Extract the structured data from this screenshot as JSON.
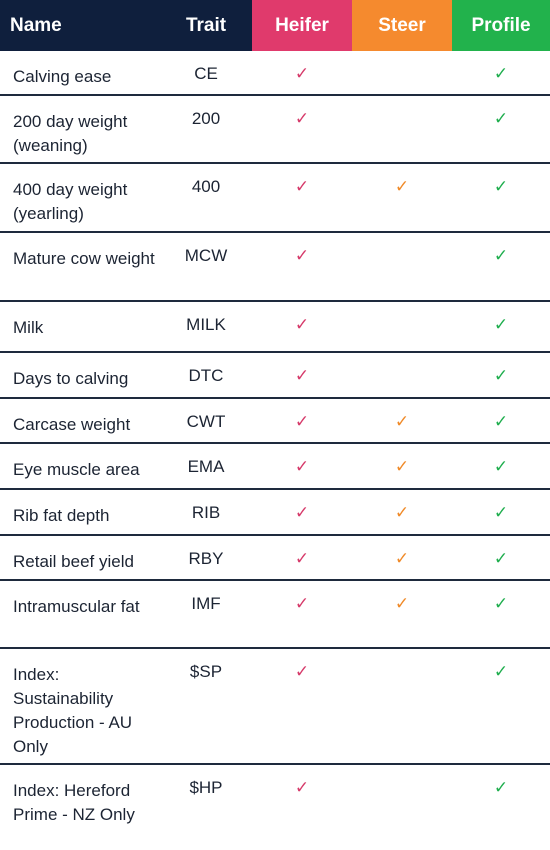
{
  "colors": {
    "header_bg": "#0f1f3d",
    "heifer": "#e03a6c",
    "steer": "#f58a2e",
    "profile": "#22b24c",
    "check_mark": "✓"
  },
  "headers": {
    "name": "Name",
    "trait": "Trait",
    "heifer": "Heifer",
    "steer": "Steer",
    "profile": "Profile"
  },
  "rows": [
    {
      "name": "Calving ease",
      "trait": "CE",
      "heifer": true,
      "steer": false,
      "profile": true
    },
    {
      "name": "200 day weight (weaning)",
      "trait": "200",
      "heifer": true,
      "steer": false,
      "profile": true
    },
    {
      "name": "400 day weight (yearling)",
      "trait": "400",
      "heifer": true,
      "steer": true,
      "profile": true
    },
    {
      "name": "Mature cow weight",
      "trait": "MCW",
      "heifer": true,
      "steer": false,
      "profile": true
    },
    {
      "name": "Milk",
      "trait": "MILK",
      "heifer": true,
      "steer": false,
      "profile": true
    },
    {
      "name": "Days to calving",
      "trait": "DTC",
      "heifer": true,
      "steer": false,
      "profile": true
    },
    {
      "name": "Carcase weight",
      "trait": "CWT",
      "heifer": true,
      "steer": true,
      "profile": true
    },
    {
      "name": "Eye muscle area",
      "trait": "EMA",
      "heifer": true,
      "steer": true,
      "profile": true
    },
    {
      "name": "Rib fat depth",
      "trait": "RIB",
      "heifer": true,
      "steer": true,
      "profile": true
    },
    {
      "name": "Retail beef yield",
      "trait": "RBY",
      "heifer": true,
      "steer": true,
      "profile": true
    },
    {
      "name": "Intramuscular fat",
      "trait": "IMF",
      "heifer": true,
      "steer": true,
      "profile": true
    },
    {
      "name": "Index: Sustainability Production - AU Only",
      "trait": "$SP",
      "heifer": true,
      "steer": false,
      "profile": true
    },
    {
      "name": "Index: Hereford Prime - NZ Only",
      "trait": "$HP",
      "heifer": true,
      "steer": false,
      "profile": true
    }
  ]
}
